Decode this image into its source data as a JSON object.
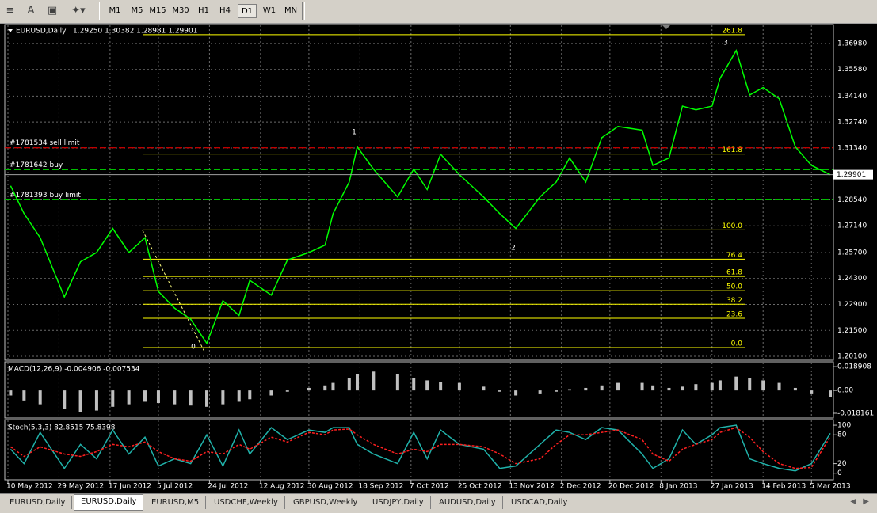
{
  "toolbar": {
    "buttons": [
      "M1",
      "M5",
      "M15",
      "M30",
      "H1",
      "H4",
      "D1",
      "W1",
      "MN"
    ],
    "active_index": 6
  },
  "chart_data": [
    {
      "type": "line",
      "title": "EURUSD,Daily",
      "subtitle": "1.29250 1.30382 1.28981 1.29901",
      "color": "#00ff00",
      "x": [
        1,
        6,
        12,
        21,
        27,
        33,
        39,
        45,
        51,
        56,
        62,
        68,
        74,
        80,
        86,
        90,
        98,
        104,
        112,
        118,
        121,
        127,
        130,
        136,
        145,
        151,
        156,
        161,
        168,
        177,
        183,
        189,
        198,
        204,
        209,
        215,
        221,
        227,
        236,
        240,
        246,
        251,
        256,
        262,
        265,
        271,
        276,
        281,
        287,
        293,
        299,
        306
      ],
      "values": [
        1.293,
        1.278,
        1.265,
        1.233,
        1.252,
        1.257,
        1.27,
        1.257,
        1.265,
        1.236,
        1.227,
        1.221,
        1.208,
        1.231,
        1.223,
        1.242,
        1.234,
        1.253,
        1.257,
        1.261,
        1.278,
        1.295,
        1.314,
        1.302,
        1.287,
        1.302,
        1.291,
        1.31,
        1.299,
        1.287,
        1.278,
        1.27,
        1.287,
        1.295,
        1.308,
        1.295,
        1.319,
        1.325,
        1.323,
        1.304,
        1.308,
        1.336,
        1.334,
        1.336,
        1.351,
        1.366,
        1.342,
        1.346,
        1.34,
        1.314,
        1.304,
        1.299
      ],
      "xlim": [
        0,
        306
      ],
      "ylim": [
        1.1993,
        1.3796
      ],
      "yticks": [
        {
          "value": 1.3698,
          "label": "1.36980"
        },
        {
          "value": 1.3558,
          "label": "1.35580"
        },
        {
          "value": 1.3414,
          "label": "1.34140"
        },
        {
          "value": 1.3274,
          "label": "1.32740"
        },
        {
          "value": 1.3134,
          "label": "1.31340"
        },
        {
          "value": 1.2854,
          "label": "1.28540"
        },
        {
          "value": 1.2714,
          "label": "1.27140"
        },
        {
          "value": 1.257,
          "label": "1.25700"
        },
        {
          "value": 1.243,
          "label": "1.24300"
        },
        {
          "value": 1.229,
          "label": "1.22900"
        },
        {
          "value": 1.215,
          "label": "1.21500"
        },
        {
          "value": 1.201,
          "label": "1.20100"
        }
      ],
      "xticks": [
        {
          "value": 0,
          "label": "10 May 2012"
        },
        {
          "value": 19,
          "label": "29 May 2012"
        },
        {
          "value": 38,
          "label": "17 Jun 2012"
        },
        {
          "value": 56,
          "label": "5 Jul 2012"
        },
        {
          "value": 75,
          "label": "24 Jul 2012"
        },
        {
          "value": 94,
          "label": "12 Aug 2012"
        },
        {
          "value": 112,
          "label": "30 Aug 2012"
        },
        {
          "value": 131,
          "label": "18 Sep 2012"
        },
        {
          "value": 150,
          "label": "7 Oct 2012"
        },
        {
          "value": 168,
          "label": "25 Oct 2012"
        },
        {
          "value": 187,
          "label": "13 Nov 2012"
        },
        {
          "value": 206,
          "label": "2 Dec 2012"
        },
        {
          "value": 224,
          "label": "20 Dec 2012"
        },
        {
          "value": 243,
          "label": "8 Jan 2013"
        },
        {
          "value": 262,
          "label": "27 Jan 2013"
        },
        {
          "value": 281,
          "label": "14 Feb 2013"
        },
        {
          "value": 299,
          "label": "5 Mar 2013"
        }
      ],
      "grid": true,
      "current_price": {
        "value": 1.29901,
        "label": "1.29901"
      },
      "fibo": {
        "color": "#ffff00",
        "levels": [
          {
            "label": "0.0",
            "price": 1.2057
          },
          {
            "label": "23.6",
            "price": 1.2215
          },
          {
            "label": "38.2",
            "price": 1.2291
          },
          {
            "label": "50.0",
            "price": 1.2364
          },
          {
            "label": "61.8",
            "price": 1.2441
          },
          {
            "label": "76.4",
            "price": 1.2534
          },
          {
            "label": "100.0",
            "price": 1.2692
          },
          {
            "label": "161.8",
            "price": 1.3101
          },
          {
            "label": "261.8",
            "price": 1.3745
          }
        ]
      },
      "orders": [
        {
          "label": "#1781534 sell limit",
          "price": 1.3135,
          "color": "#ff0000"
        },
        {
          "label": "#1781642 buy",
          "price": 1.3016,
          "color": "#00c000"
        },
        {
          "label": "#1781393 buy limit",
          "price": 1.2854,
          "color": "#00c000"
        }
      ],
      "wave_labels": [
        "0",
        "1",
        "2",
        "3"
      ]
    },
    {
      "type": "bar",
      "title": "MACD(12,26,9) -0.004906 -0.007534",
      "color": "#c0c0c0",
      "values": [
        -0.004,
        -0.008,
        -0.011,
        -0.015,
        -0.017,
        -0.016,
        -0.013,
        -0.011,
        -0.009,
        -0.01,
        -0.011,
        -0.012,
        -0.013,
        -0.011,
        -0.009,
        -0.007,
        -0.004,
        -0.001,
        0.002,
        0.004,
        0.006,
        0.01,
        0.013,
        0.015,
        0.013,
        0.01,
        0.008,
        0.007,
        0.006,
        0.003,
        -0.001,
        -0.004,
        -0.003,
        -0.001,
        0.001,
        0.002,
        0.004,
        0.006,
        0.006,
        0.004,
        0.002,
        0.003,
        0.005,
        0.006,
        0.008,
        0.011,
        0.01,
        0.008,
        0.006,
        0.002,
        -0.003,
        -0.005
      ],
      "ylim": [
        -0.0213,
        0.0221
      ],
      "yticks": [
        {
          "value": 0.018908,
          "label": "0.018908"
        },
        {
          "value": 0,
          "label": "0.00"
        },
        {
          "value": -0.018161,
          "label": "-0.018161"
        }
      ]
    },
    {
      "type": "line",
      "title": "Stoch(5,3,3) 82.8515 75.8398",
      "series": [
        {
          "color": "#20b2aa",
          "values": [
            50,
            20,
            85,
            10,
            60,
            30,
            90,
            40,
            75,
            15,
            30,
            20,
            80,
            15,
            90,
            40,
            95,
            70,
            90,
            85,
            95,
            95,
            60,
            40,
            20,
            85,
            30,
            90,
            60,
            50,
            10,
            15,
            60,
            90,
            85,
            70,
            95,
            90,
            40,
            10,
            30,
            90,
            60,
            80,
            95,
            100,
            30,
            20,
            10,
            5,
            20,
            83
          ]
        },
        {
          "color": "#ff2020",
          "values": [
            55,
            35,
            55,
            40,
            35,
            45,
            60,
            55,
            65,
            45,
            30,
            25,
            45,
            40,
            60,
            50,
            75,
            65,
            85,
            80,
            90,
            92,
            80,
            60,
            40,
            50,
            45,
            60,
            60,
            55,
            40,
            20,
            30,
            60,
            80,
            80,
            85,
            90,
            70,
            40,
            25,
            50,
            60,
            70,
            85,
            95,
            75,
            45,
            20,
            10,
            12,
            76
          ]
        }
      ],
      "ylim": [
        -12,
        110
      ],
      "yticks": [
        100,
        80,
        20,
        0
      ]
    }
  ],
  "tabs": {
    "items": [
      "EURUSD,Daily",
      "EURUSD,Daily",
      "EURUSD,M5",
      "USDCHF,Weekly",
      "GBPUSD,Weekly",
      "USDJPY,Daily",
      "AUDUSD,Daily",
      "USDCAD,Daily"
    ],
    "active_index": 1
  }
}
